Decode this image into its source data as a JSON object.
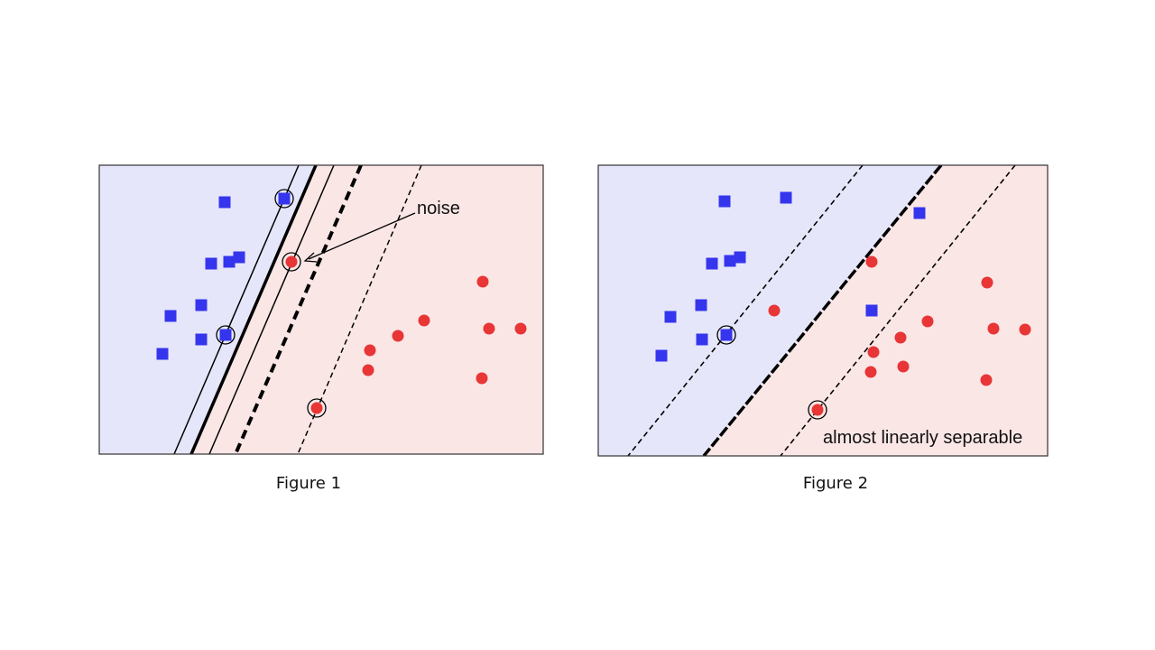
{
  "figures": [
    {
      "caption": "Figure 1",
      "annotation": "noise"
    },
    {
      "caption": "Figure 2",
      "annotation": "almost linearly separable"
    }
  ],
  "colors": {
    "class_a_region": "#e6e6fb",
    "class_b_region": "#fbe6e6",
    "class_a_marker": "#3535ee",
    "class_b_marker": "#e83535",
    "lines": "#000000"
  },
  "legend_semantics": {
    "class_a_marker_shape": "square",
    "class_b_marker_shape": "circle",
    "support_vector_marker": "ring"
  }
}
